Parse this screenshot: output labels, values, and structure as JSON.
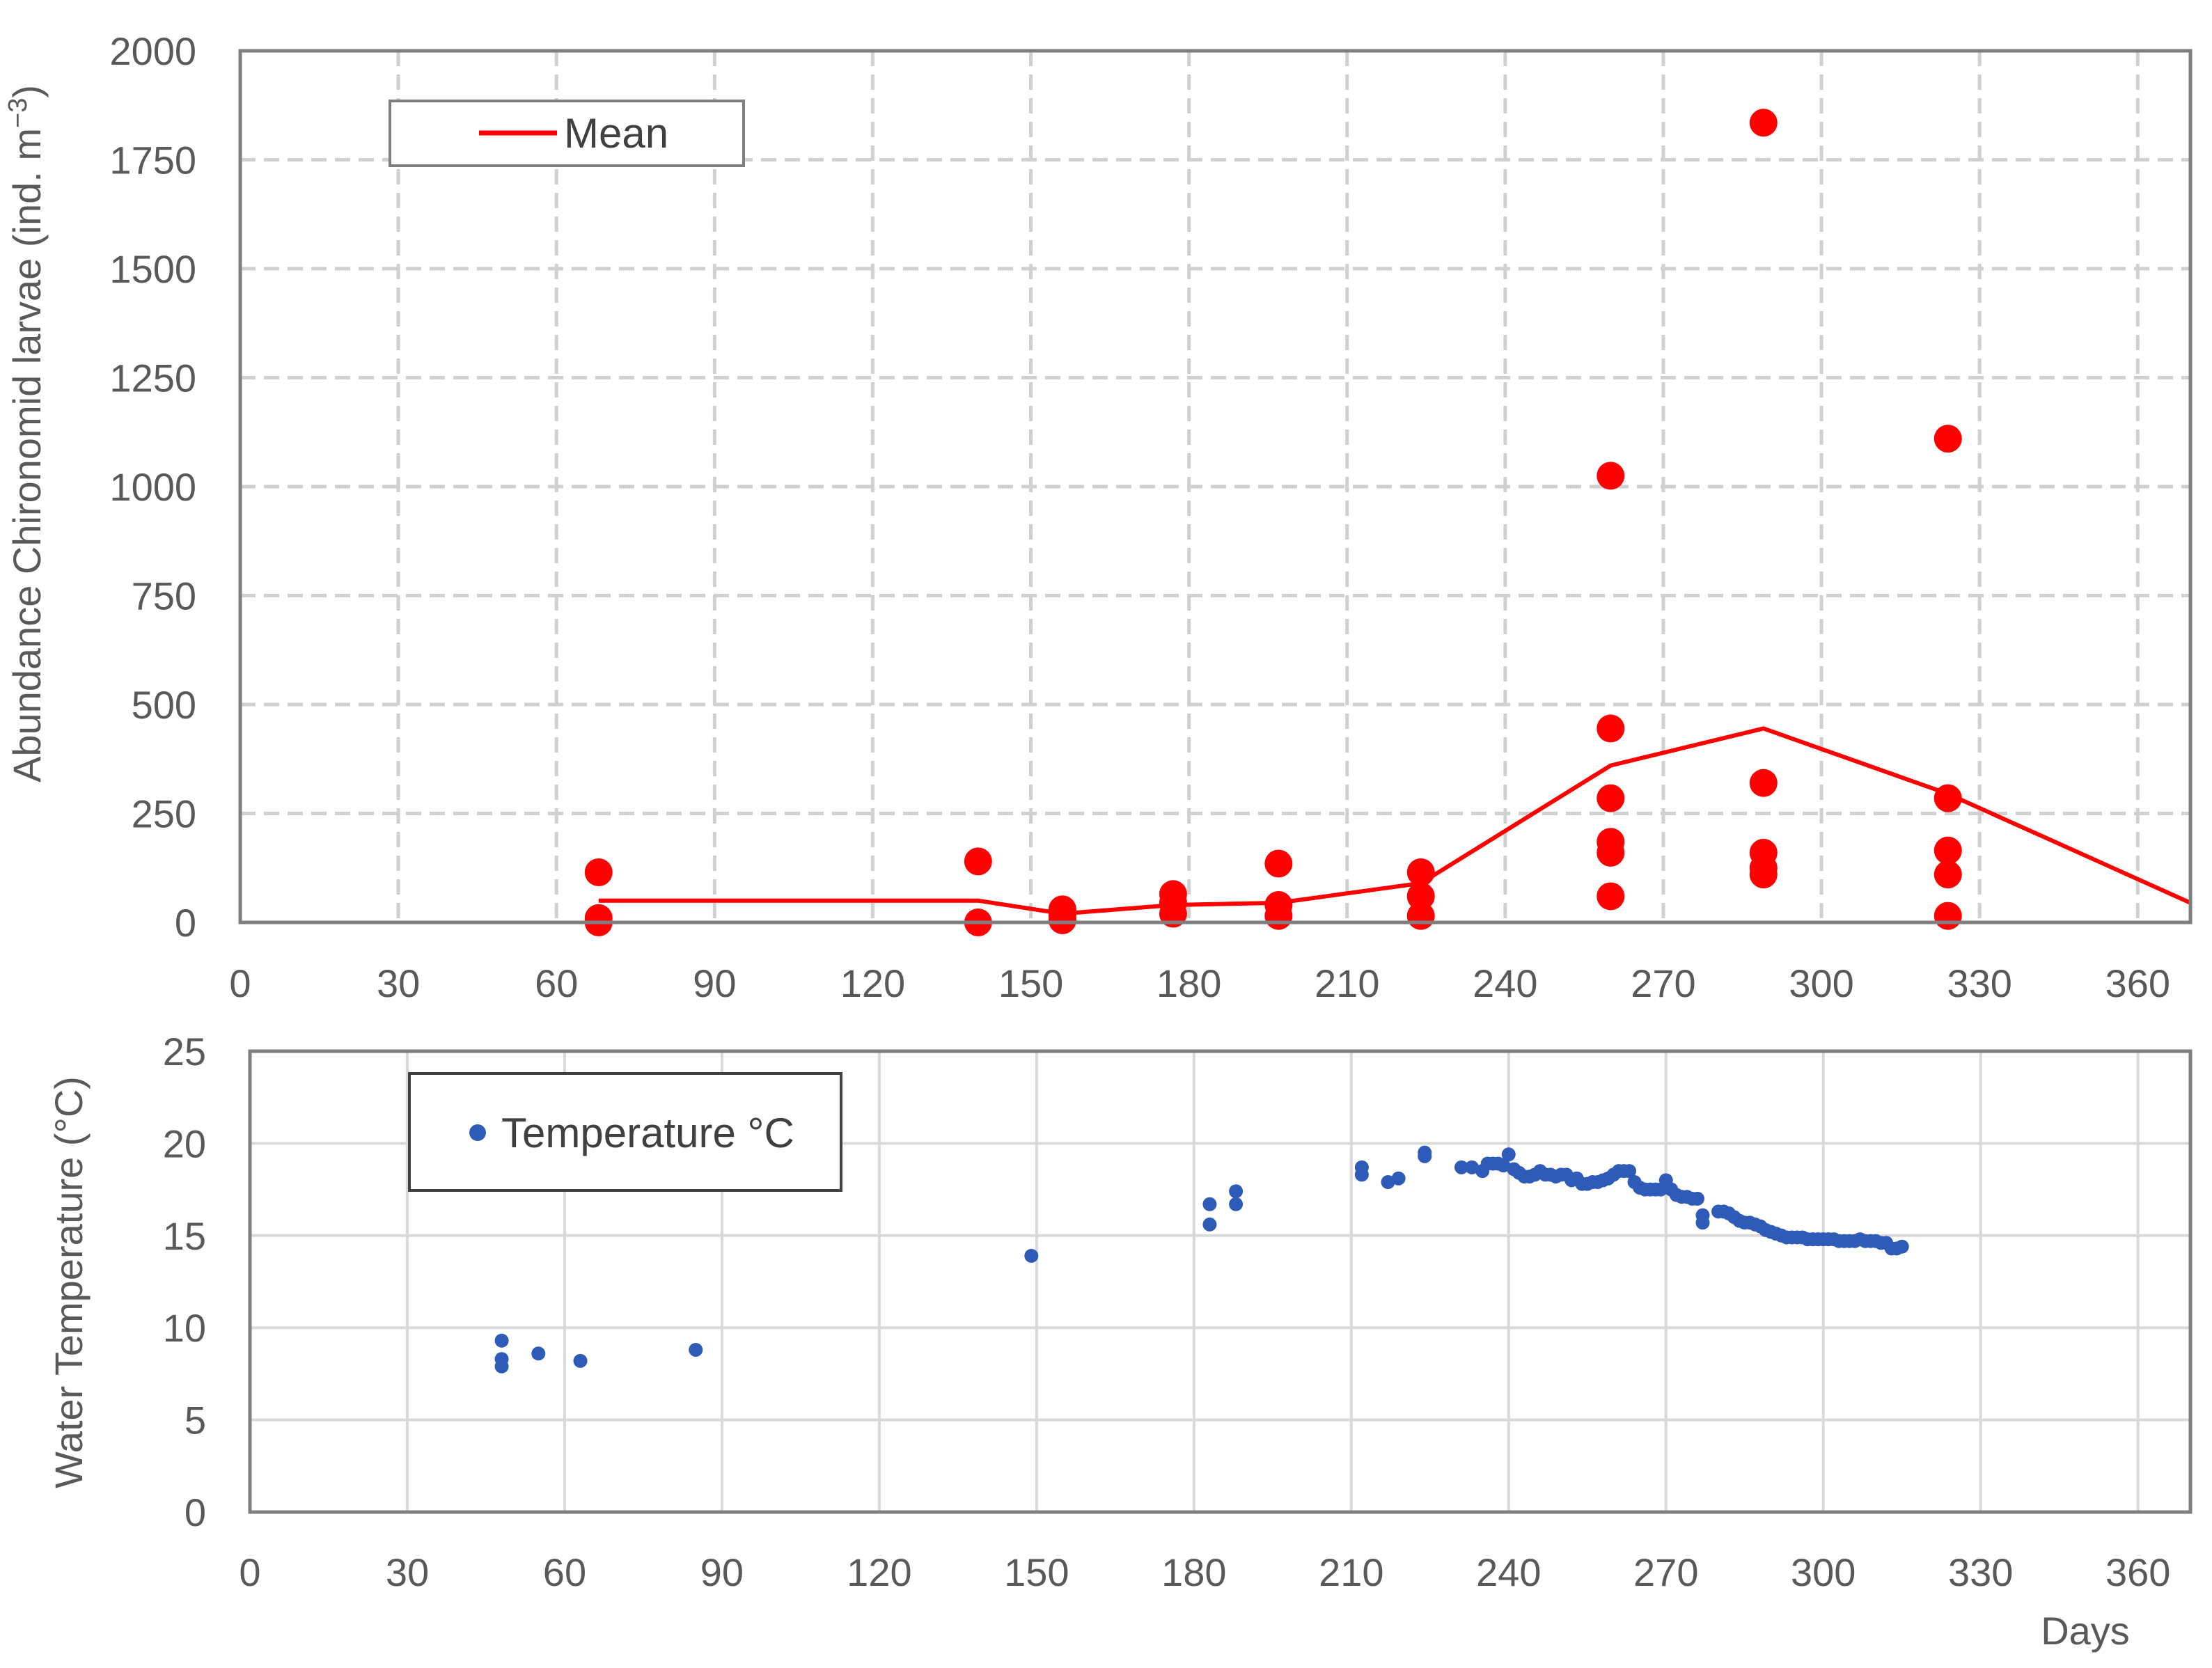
{
  "chart_data": [
    {
      "type": "scatter",
      "title": "",
      "xlabel": "",
      "ylabel": "Abundance Chironomid larvae (ind. m",
      "ylabel_superscript": "−3",
      "ylabel_suffix": ")",
      "xlim": [
        0,
        370
      ],
      "ylim": [
        0,
        2000
      ],
      "xticks": [
        0,
        30,
        60,
        90,
        120,
        150,
        180,
        210,
        240,
        270,
        300,
        330,
        360
      ],
      "yticks": [
        0,
        250,
        500,
        750,
        1000,
        1250,
        1500,
        1750,
        2000
      ],
      "grid": "dashed",
      "legend_position": "top-left",
      "series": [
        {
          "name": "Mean",
          "kind": "line",
          "color": "#ff0000",
          "points": [
            [
              68,
              50
            ],
            [
              140,
              50
            ],
            [
              156,
              20
            ],
            [
              177,
              40
            ],
            [
              197,
              45
            ],
            [
              224,
              90
            ],
            [
              260,
              360
            ],
            [
              289,
              445
            ],
            [
              324,
              295
            ],
            [
              370,
              45
            ]
          ]
        },
        {
          "kind": "scatter",
          "color": "#ff0000",
          "points": [
            [
              68,
              115
            ],
            [
              68,
              10
            ],
            [
              68,
              0
            ],
            [
              140,
              140
            ],
            [
              140,
              0
            ],
            [
              156,
              30
            ],
            [
              156,
              15
            ],
            [
              156,
              5
            ],
            [
              177,
              65
            ],
            [
              177,
              45
            ],
            [
              177,
              20
            ],
            [
              197,
              135
            ],
            [
              197,
              40
            ],
            [
              197,
              15
            ],
            [
              224,
              115
            ],
            [
              224,
              60
            ],
            [
              224,
              15
            ],
            [
              260,
              1025
            ],
            [
              260,
              445
            ],
            [
              260,
              285
            ],
            [
              260,
              185
            ],
            [
              260,
              160
            ],
            [
              260,
              60
            ],
            [
              289,
              1835
            ],
            [
              289,
              320
            ],
            [
              289,
              160
            ],
            [
              289,
              125
            ],
            [
              289,
              110
            ],
            [
              324,
              1110
            ],
            [
              324,
              285
            ],
            [
              324,
              165
            ],
            [
              324,
              110
            ],
            [
              324,
              15
            ]
          ]
        }
      ]
    },
    {
      "type": "scatter",
      "title": "",
      "xlabel": "Days",
      "ylabel": "Water Temperature (°C)",
      "xlim": [
        0,
        370
      ],
      "ylim": [
        0,
        25
      ],
      "xticks": [
        0,
        30,
        60,
        90,
        120,
        150,
        180,
        210,
        240,
        270,
        300,
        330,
        360
      ],
      "yticks": [
        0,
        5,
        10,
        15,
        20,
        25
      ],
      "grid": "solid",
      "legend_position": "top-left",
      "series": [
        {
          "name": "Temperature °C",
          "color": "#2e5bb8",
          "points": [
            [
              48,
              9.3
            ],
            [
              48,
              8.3
            ],
            [
              48,
              7.9
            ],
            [
              55,
              8.6
            ],
            [
              63,
              8.2
            ],
            [
              85,
              8.8
            ],
            [
              149,
              13.9
            ],
            [
              183,
              16.7
            ],
            [
              183,
              15.6
            ],
            [
              188,
              17.4
            ],
            [
              188,
              16.7
            ],
            [
              212,
              18.7
            ],
            [
              212,
              18.3
            ],
            [
              217,
              17.9
            ],
            [
              219,
              18.1
            ],
            [
              224,
              19.5
            ],
            [
              224,
              19.3
            ],
            [
              231,
              18.7
            ],
            [
              233,
              18.7
            ],
            [
              235,
              18.5
            ],
            [
              236,
              18.9
            ],
            [
              237,
              18.9
            ],
            [
              238,
              18.9
            ],
            [
              239,
              18.8
            ],
            [
              240,
              19.4
            ],
            [
              241,
              18.6
            ],
            [
              242,
              18.4
            ],
            [
              243,
              18.2
            ],
            [
              244,
              18.2
            ],
            [
              245,
              18.3
            ],
            [
              246,
              18.5
            ],
            [
              247,
              18.3
            ],
            [
              248,
              18.3
            ],
            [
              249,
              18.2
            ],
            [
              250,
              18.3
            ],
            [
              251,
              18.3
            ],
            [
              252,
              18.0
            ],
            [
              253,
              18.1
            ],
            [
              254,
              17.8
            ],
            [
              255,
              17.8
            ],
            [
              256,
              17.9
            ],
            [
              257,
              17.9
            ],
            [
              258,
              18.0
            ],
            [
              259,
              18.1
            ],
            [
              260,
              18.3
            ],
            [
              261,
              18.5
            ],
            [
              262,
              18.5
            ],
            [
              263,
              18.5
            ],
            [
              264,
              17.9
            ],
            [
              265,
              17.6
            ],
            [
              266,
              17.5
            ],
            [
              267,
              17.5
            ],
            [
              268,
              17.5
            ],
            [
              269,
              17.5
            ],
            [
              270,
              18.0
            ],
            [
              271,
              17.5
            ],
            [
              272,
              17.2
            ],
            [
              273,
              17.1
            ],
            [
              274,
              17.1
            ],
            [
              275,
              17.0
            ],
            [
              276,
              17.0
            ],
            [
              277,
              16.1
            ],
            [
              277,
              15.7
            ],
            [
              280,
              16.3
            ],
            [
              281,
              16.3
            ],
            [
              282,
              16.2
            ],
            [
              283,
              16.0
            ],
            [
              284,
              15.8
            ],
            [
              285,
              15.7
            ],
            [
              286,
              15.7
            ],
            [
              287,
              15.6
            ],
            [
              288,
              15.5
            ],
            [
              289,
              15.3
            ],
            [
              290,
              15.2
            ],
            [
              291,
              15.1
            ],
            [
              292,
              15.0
            ],
            [
              293,
              14.9
            ],
            [
              294,
              14.9
            ],
            [
              295,
              14.9
            ],
            [
              296,
              14.9
            ],
            [
              297,
              14.8
            ],
            [
              298,
              14.8
            ],
            [
              299,
              14.8
            ],
            [
              300,
              14.8
            ],
            [
              301,
              14.8
            ],
            [
              302,
              14.8
            ],
            [
              303,
              14.7
            ],
            [
              304,
              14.7
            ],
            [
              305,
              14.7
            ],
            [
              306,
              14.7
            ],
            [
              307,
              14.8
            ],
            [
              308,
              14.7
            ],
            [
              309,
              14.7
            ],
            [
              310,
              14.7
            ],
            [
              311,
              14.6
            ],
            [
              312,
              14.6
            ],
            [
              313,
              14.3
            ],
            [
              314,
              14.3
            ],
            [
              315,
              14.4
            ]
          ]
        }
      ]
    }
  ]
}
